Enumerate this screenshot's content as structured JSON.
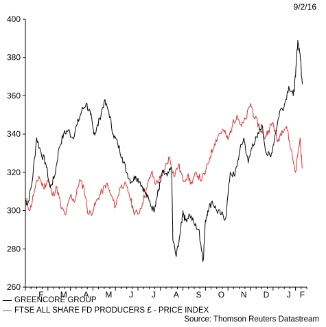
{
  "date_label": "9/2/16",
  "source": "Source: Thomson Reuters Datastream",
  "chart_data": {
    "type": "line",
    "ylim": [
      260,
      400
    ],
    "yticks": [
      260,
      280,
      300,
      320,
      340,
      360,
      380,
      400
    ],
    "x_tick_labels": [
      "F",
      "M",
      "A",
      "M",
      "J",
      "J",
      "A",
      "S",
      "O",
      "N",
      "D",
      "J",
      "F"
    ],
    "x_tick_positions": [
      0.7,
      1.7,
      2.7,
      3.7,
      4.7,
      5.7,
      6.7,
      7.7,
      8.7,
      9.7,
      10.7,
      11.7,
      12.3
    ],
    "xlim": [
      0,
      12.5
    ],
    "grid": false,
    "legend_placement": "bottom-left",
    "series": [
      {
        "name": "GREENCORE GROUP",
        "color": "#000000",
        "x": [
          0,
          0.1,
          0.3,
          0.5,
          0.7,
          0.9,
          1.1,
          1.3,
          1.5,
          1.7,
          1.9,
          2.1,
          2.3,
          2.5,
          2.7,
          2.9,
          3.0,
          3.1,
          3.3,
          3.5,
          3.7,
          3.9,
          4.1,
          4.3,
          4.5,
          4.7,
          4.9,
          5.1,
          5.3,
          5.5,
          5.7,
          5.8,
          5.9,
          6.0,
          6.1,
          6.3,
          6.5,
          6.55,
          6.7,
          6.9,
          7.0,
          7.1,
          7.3,
          7.5,
          7.7,
          7.8,
          7.9,
          8.0,
          8.1,
          8.3,
          8.5,
          8.7,
          8.9,
          9.1,
          9.3,
          9.5,
          9.7,
          9.9,
          10.1,
          10.3,
          10.5,
          10.7,
          10.9,
          11.1,
          11.3,
          11.5,
          11.7,
          11.9,
          12.0,
          12.1,
          12.2,
          12.3
        ],
        "values": [
          306,
          303,
          315,
          338,
          330,
          325,
          312,
          318,
          333,
          340,
          342,
          338,
          345,
          352,
          356,
          350,
          343,
          340,
          348,
          357,
          352,
          340,
          335,
          328,
          320,
          315,
          318,
          315,
          310,
          305,
          300,
          305,
          310,
          315,
          320,
          318,
          322,
          285,
          276,
          290,
          300,
          295,
          298,
          293,
          290,
          282,
          274,
          295,
          300,
          305,
          300,
          298,
          296,
          320,
          318,
          330,
          338,
          325,
          335,
          338,
          345,
          330,
          328,
          340,
          352,
          355,
          365,
          360,
          370,
          389,
          382,
          366
        ]
      },
      {
        "name": "FTSE ALL SHARE FD PRODUCERS £ - PRICE INDEX",
        "color": "#e03030",
        "x": [
          0,
          0.2,
          0.4,
          0.6,
          0.8,
          1.0,
          1.2,
          1.4,
          1.6,
          1.8,
          2.0,
          2.2,
          2.4,
          2.6,
          2.8,
          3.0,
          3.2,
          3.4,
          3.6,
          3.8,
          4.0,
          4.2,
          4.4,
          4.6,
          4.8,
          5.0,
          5.2,
          5.4,
          5.6,
          5.8,
          6.0,
          6.2,
          6.4,
          6.6,
          6.8,
          7.0,
          7.2,
          7.4,
          7.6,
          7.8,
          8.0,
          8.2,
          8.4,
          8.6,
          8.8,
          9.0,
          9.2,
          9.4,
          9.6,
          9.8,
          10.0,
          10.2,
          10.4,
          10.6,
          10.8,
          11.0,
          11.2,
          11.4,
          11.6,
          11.8,
          12.0,
          12.2,
          12.3
        ],
        "values": [
          307,
          300,
          310,
          318,
          312,
          316,
          308,
          312,
          301,
          298,
          308,
          305,
          316,
          312,
          298,
          300,
          306,
          310,
          314,
          308,
          302,
          312,
          314,
          309,
          300,
          298,
          304,
          312,
          320,
          314,
          317,
          322,
          328,
          318,
          324,
          316,
          318,
          314,
          320,
          316,
          320,
          328,
          335,
          340,
          342,
          337,
          345,
          350,
          344,
          348,
          356,
          348,
          344,
          338,
          342,
          346,
          336,
          342,
          344,
          332,
          320,
          338,
          322
        ]
      }
    ]
  }
}
